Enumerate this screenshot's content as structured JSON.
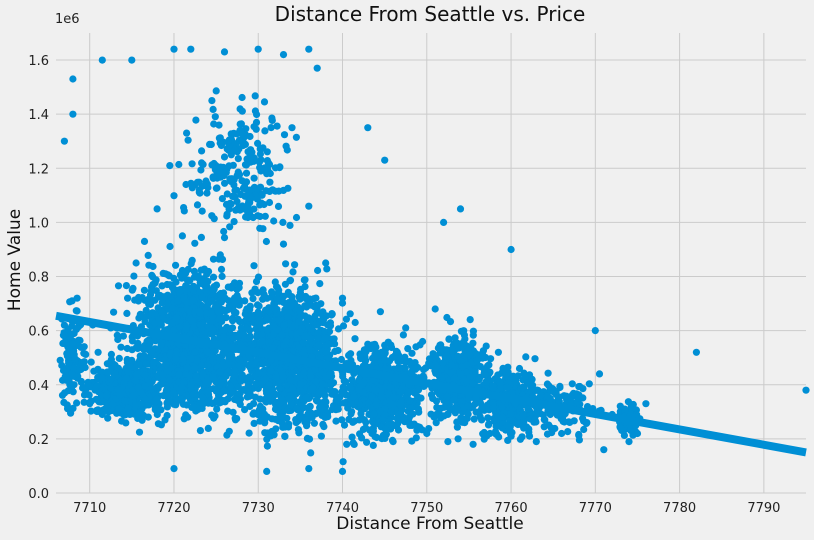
{
  "chart_data": {
    "type": "scatter",
    "title": "Distance From Seattle vs. Price",
    "xlabel": "Distance From Seattle",
    "ylabel": "Home Value",
    "y_exponent_label": "1e6",
    "xlim": [
      7706,
      7795
    ],
    "ylim": [
      0,
      1.7
    ],
    "xticks": [
      7710,
      7720,
      7730,
      7740,
      7750,
      7760,
      7770,
      7780,
      7790
    ],
    "yticks": [
      0.0,
      0.2,
      0.4,
      0.6,
      0.8,
      1.0,
      1.2,
      1.4,
      1.6
    ],
    "ytick_labels": [
      "0.0",
      "0.2",
      "0.4",
      "0.6",
      "0.8",
      "1.0",
      "1.2",
      "1.4",
      "1.6"
    ],
    "grid": true,
    "point_color": "#008fd5",
    "background": "#f0f0f0",
    "grid_color": "#cbcbcb",
    "trend_line": {
      "x": [
        7706,
        7795
      ],
      "y": [
        0.655,
        0.15
      ]
    },
    "series": [
      {
        "points": [
          [
            7707,
            0.62
          ],
          [
            7707.5,
            0.48
          ],
          [
            7708,
            0.55
          ],
          [
            7708.5,
            0.72
          ],
          [
            7709,
            0.41
          ],
          [
            7709.5,
            0.38
          ],
          [
            7710,
            0.33
          ],
          [
            7710.5,
            0.45
          ],
          [
            7711,
            0.52
          ],
          [
            7711.5,
            0.29
          ],
          [
            7712,
            0.36
          ],
          [
            7712.5,
            0.61
          ],
          [
            7713,
            0.44
          ],
          [
            7713.5,
            0.31
          ],
          [
            7714,
            0.58
          ],
          [
            7714.5,
            0.72
          ],
          [
            7715,
            0.49
          ],
          [
            7715.5,
            0.85
          ],
          [
            7716,
            0.66
          ],
          [
            7716.5,
            0.93
          ],
          [
            7717,
            0.54
          ],
          [
            7717.5,
            0.77
          ],
          [
            7718,
            1.05
          ],
          [
            7718.5,
            0.62
          ],
          [
            7719,
            0.81
          ],
          [
            7719.5,
            1.21
          ],
          [
            7720,
            0.58
          ],
          [
            7720.5,
            0.71
          ],
          [
            7721,
            0.95
          ],
          [
            7721.5,
            1.33
          ],
          [
            7722,
            0.64
          ],
          [
            7722.5,
            0.52
          ],
          [
            7723,
            1.12
          ],
          [
            7723.5,
            0.78
          ],
          [
            7724,
            0.47
          ],
          [
            7724.5,
            1.45
          ],
          [
            7725,
            0.69
          ],
          [
            7725.5,
            0.88
          ],
          [
            7726,
            0.55
          ],
          [
            7726.5,
            1.28
          ],
          [
            7727,
            0.42
          ],
          [
            7727.5,
            0.73
          ],
          [
            7728,
            0.61
          ],
          [
            7728.5,
            1.02
          ],
          [
            7729,
            0.37
          ],
          [
            7729.5,
            0.84
          ],
          [
            7730,
            0.29
          ],
          [
            7730.5,
            0.56
          ],
          [
            7731,
            1.18
          ],
          [
            7731.5,
            0.45
          ],
          [
            7732,
            0.68
          ],
          [
            7732.5,
            0.33
          ],
          [
            7733,
            0.92
          ],
          [
            7733.5,
            0.51
          ],
          [
            7734,
            1.35
          ],
          [
            7734.5,
            0.26
          ],
          [
            7735,
            0.74
          ],
          [
            7735.5,
            0.48
          ],
          [
            7736,
            1.06
          ],
          [
            7736.5,
            0.39
          ],
          [
            7737,
            0.62
          ],
          [
            7737.5,
            0.21
          ],
          [
            7738,
            0.85
          ],
          [
            7738.5,
            0.44
          ],
          [
            7739,
            0.57
          ],
          [
            7739.5,
            0.31
          ],
          [
            7740,
            0.72
          ],
          [
            7740.5,
            0.18
          ],
          [
            7741,
            0.49
          ],
          [
            7741.5,
            0.63
          ],
          [
            7742,
            0.27
          ],
          [
            7742.5,
            0.41
          ],
          [
            7743,
            0.55
          ],
          [
            7743.5,
            0.22
          ],
          [
            7744,
            0.38
          ],
          [
            7744.5,
            0.67
          ],
          [
            7745,
            0.29
          ],
          [
            7745.5,
            0.46
          ],
          [
            7746,
            0.19
          ],
          [
            7746.5,
            0.52
          ],
          [
            7747,
            0.34
          ],
          [
            7747.5,
            0.61
          ],
          [
            7748,
            0.25
          ],
          [
            7748.5,
            0.43
          ],
          [
            7749,
            0.31
          ],
          [
            7749.5,
            0.56
          ],
          [
            7750,
            0.22
          ],
          [
            7750.5,
            0.47
          ],
          [
            7751,
            0.68
          ],
          [
            7751.5,
            0.29
          ],
          [
            7752,
            0.38
          ],
          [
            7752.5,
            0.19
          ],
          [
            7753,
            0.53
          ],
          [
            7753.5,
            0.31
          ],
          [
            7754,
            0.44
          ],
          [
            7754.5,
            0.26
          ],
          [
            7755,
            0.36
          ],
          [
            7755.5,
            0.18
          ],
          [
            7756,
            0.49
          ],
          [
            7756.5,
            0.27
          ],
          [
            7757,
            0.41
          ],
          [
            7757.5,
            0.22
          ],
          [
            7758,
            0.35
          ],
          [
            7758.5,
            0.52
          ],
          [
            7759,
            0.28
          ],
          [
            7759.5,
            0.39
          ],
          [
            7760,
            0.21
          ],
          [
            7760.5,
            0.33
          ],
          [
            7761,
            0.46
          ],
          [
            7761.5,
            0.24
          ],
          [
            7762,
            0.31
          ],
          [
            7762.5,
            0.42
          ],
          [
            7763,
            0.19
          ],
          [
            7763.5,
            0.36
          ],
          [
            7764,
            0.27
          ],
          [
            7765,
            0.38
          ],
          [
            7766,
            0.22
          ],
          [
            7767,
            0.31
          ],
          [
            7768,
            0.35
          ],
          [
            7769,
            0.26
          ],
          [
            7770,
            0.6
          ],
          [
            7770.5,
            0.44
          ],
          [
            7771,
            0.16
          ],
          [
            7772,
            0.29
          ],
          [
            7773,
            0.24
          ],
          [
            7773.5,
            0.31
          ],
          [
            7774,
            0.19
          ],
          [
            7774.5,
            0.27
          ],
          [
            7775,
            0.22
          ],
          [
            7776,
            0.33
          ],
          [
            7782,
            0.52
          ],
          [
            7795,
            0.38
          ],
          [
            7707,
            1.3
          ],
          [
            7708,
            1.53
          ],
          [
            7708,
            1.4
          ],
          [
            7711.5,
            1.6
          ],
          [
            7715,
            1.6
          ],
          [
            7720,
            1.64
          ],
          [
            7722,
            1.64
          ],
          [
            7726,
            1.63
          ],
          [
            7730,
            1.64
          ],
          [
            7733,
            1.62
          ],
          [
            7736,
            1.64
          ],
          [
            7737,
            1.57
          ],
          [
            7743,
            1.35
          ],
          [
            7745,
            1.23
          ],
          [
            7752,
            1.0
          ],
          [
            7754,
            1.05
          ],
          [
            7760,
            0.9
          ],
          [
            7720,
            0.09
          ],
          [
            7731,
            0.08
          ],
          [
            7736,
            0.09
          ],
          [
            7740,
            0.08
          ]
        ]
      }
    ]
  }
}
